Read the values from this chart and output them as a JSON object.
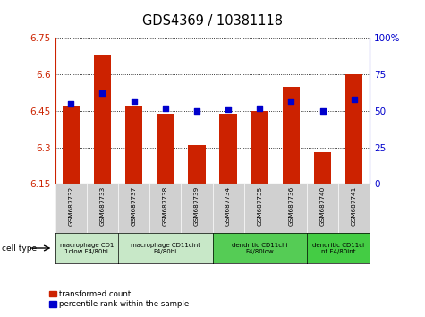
{
  "title": "GDS4369 / 10381118",
  "samples": [
    "GSM687732",
    "GSM687733",
    "GSM687737",
    "GSM687738",
    "GSM687739",
    "GSM687734",
    "GSM687735",
    "GSM687736",
    "GSM687740",
    "GSM687741"
  ],
  "bar_values": [
    6.47,
    6.68,
    6.47,
    6.44,
    6.31,
    6.44,
    6.45,
    6.55,
    6.28,
    6.6
  ],
  "dot_values": [
    55,
    62,
    57,
    52,
    50,
    51,
    52,
    57,
    50,
    58
  ],
  "ylim_left": [
    6.15,
    6.75
  ],
  "ylim_right": [
    0,
    100
  ],
  "yticks_left": [
    6.15,
    6.3,
    6.45,
    6.6,
    6.75
  ],
  "yticks_right": [
    0,
    25,
    50,
    75,
    100
  ],
  "ytick_labels_left": [
    "6.15",
    "6.3",
    "6.45",
    "6.6",
    "6.75"
  ],
  "ytick_labels_right": [
    "0",
    "25",
    "50",
    "75",
    "100%"
  ],
  "bar_color": "#cc2200",
  "dot_color": "#0000cc",
  "bar_base": 6.15,
  "cell_type_groups": [
    {
      "label": "macrophage CD1\n1clow F4/80hi",
      "start": 0,
      "end": 2,
      "color": "#c8e8c8"
    },
    {
      "label": "macrophage CD11cint\nF4/80hi",
      "start": 2,
      "end": 5,
      "color": "#c8e8c8"
    },
    {
      "label": "dendritic CD11chi\nF4/80low",
      "start": 5,
      "end": 8,
      "color": "#55cc55"
    },
    {
      "label": "dendritic CD11ci\nnt F4/80int",
      "start": 8,
      "end": 10,
      "color": "#44cc44"
    }
  ],
  "legend_bar_label": "transformed count",
  "legend_dot_label": "percentile rank within the sample",
  "cell_type_label": "cell type",
  "background_color": "#ffffff",
  "plot_bg_color": "#ffffff",
  "sample_box_color": "#d0d0d0",
  "border_color": "#888888"
}
